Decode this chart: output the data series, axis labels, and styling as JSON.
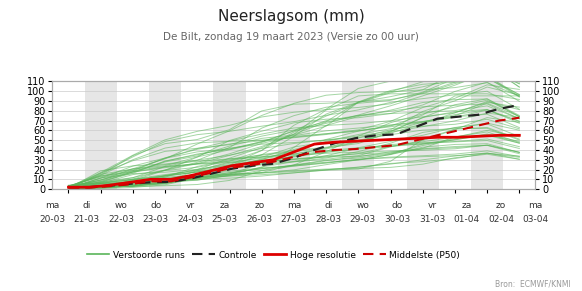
{
  "title": "Neerslagsom (mm)",
  "subtitle": "De Bilt, zondag 19 maart 2023 (Versie zo 00 uur)",
  "source": "Bron:  ECMWF/KNMI",
  "x_labels_top": [
    "ma",
    "di",
    "wo",
    "do",
    "vr",
    "za",
    "zo",
    "ma",
    "di",
    "wo",
    "do",
    "vr",
    "za",
    "zo",
    "ma"
  ],
  "x_labels_bottom": [
    "20-03",
    "21-03",
    "22-03",
    "23-03",
    "24-03",
    "25-03",
    "26-03",
    "27-03",
    "28-03",
    "29-03",
    "30-03",
    "31-03",
    "01-04",
    "02-04",
    "03-04"
  ],
  "ylim": [
    0,
    110
  ],
  "yticks": [
    0,
    10,
    20,
    30,
    40,
    50,
    60,
    70,
    80,
    90,
    100,
    110
  ],
  "gray_band_color": "#e6e6e6",
  "background_color": "#ffffff",
  "green_color": "#5ab55a",
  "black_dashed_color": "#222222",
  "red_solid_color": "#dd0000",
  "red_dashed_color": "#cc0000",
  "legend_labels": [
    "Verstoorde runs",
    "Controle",
    "Hoge resolutie",
    "Middelste (P50)"
  ],
  "ctrl": [
    2.0,
    2.0,
    3.5,
    5.5,
    7.0,
    7.5,
    11.0,
    16.0,
    21.0,
    24.0,
    26.0,
    32.0,
    40.0,
    47.0,
    52.0,
    55.0,
    56.0,
    64.0,
    72.0,
    74.0,
    76.0,
    82.0,
    86.0
  ],
  "hires": [
    2.0,
    2.0,
    4.0,
    7.0,
    10.0,
    10.0,
    14.0,
    19.0,
    24.0,
    27.0,
    30.0,
    38.0,
    46.0,
    48.0,
    49.0,
    50.0,
    51.0,
    52.0,
    53.0,
    53.0,
    54.0,
    55.0,
    55.0
  ],
  "p50": [
    1.5,
    1.5,
    3.0,
    5.0,
    8.0,
    8.0,
    12.0,
    17.0,
    22.0,
    25.0,
    28.0,
    33.0,
    38.0,
    40.0,
    41.0,
    43.0,
    45.0,
    50.0,
    55.0,
    60.0,
    65.0,
    70.0,
    73.0
  ]
}
